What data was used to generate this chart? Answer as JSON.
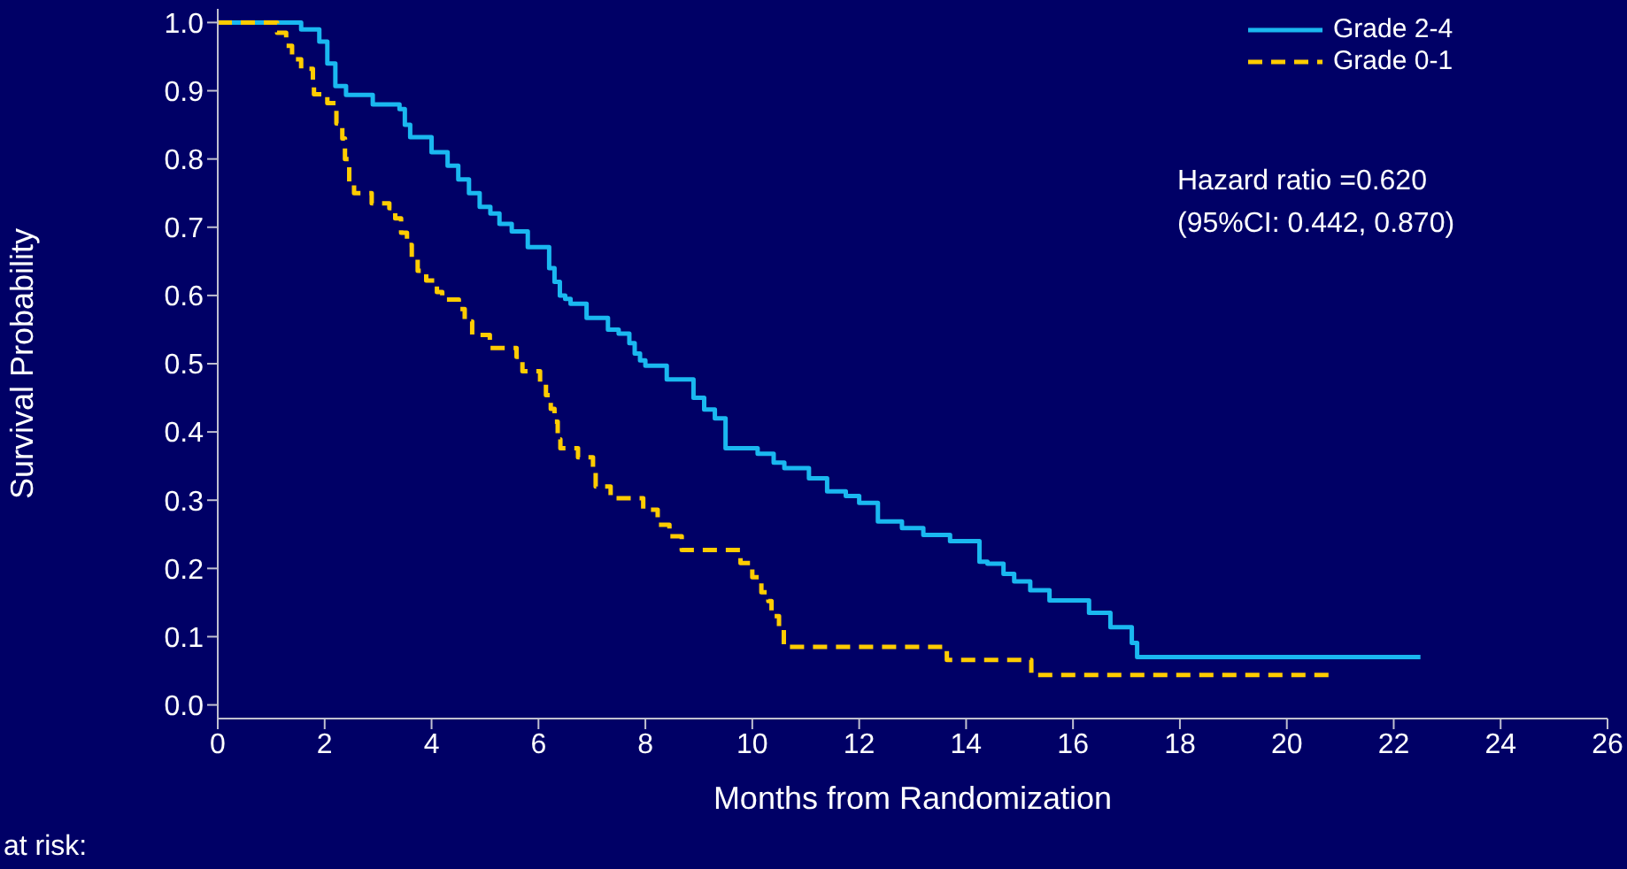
{
  "chart_data": {
    "type": "step",
    "xlabel": "Months from Randomization",
    "ylabel": "Survival Probability",
    "xlim": [
      0,
      26
    ],
    "xticks": [
      0,
      2,
      4,
      6,
      8,
      10,
      12,
      14,
      16,
      18,
      20,
      22,
      24,
      26
    ],
    "ylim": [
      -0.02,
      1.02
    ],
    "yticks": [
      {
        "value": 0,
        "label": "0.0"
      },
      0.1,
      0.2,
      0.3,
      0.4,
      0.5,
      0.6,
      0.7,
      0.8,
      0.9,
      {
        "value": 1,
        "label": "1.0"
      }
    ],
    "legend": "top right",
    "marker": "none",
    "annotations": [
      "Hazard ratio =0.620",
      "(95%CI: 0.442, 0.870)",
      "at risk:"
    ],
    "series": [
      {
        "name": "Grade 2-4",
        "color": "#1ab8f0",
        "line_style": "solid",
        "x": [
          0,
          1.56,
          1.9,
          2.05,
          2.2,
          2.4,
          2.9,
          3.4,
          3.5,
          3.6,
          4.0,
          4.3,
          4.5,
          4.7,
          4.9,
          5.1,
          5.27,
          5.5,
          5.8,
          6.2,
          6.3,
          6.4,
          6.5,
          6.6,
          6.9,
          7.3,
          7.5,
          7.7,
          7.8,
          7.9,
          8.0,
          8.4,
          8.9,
          9.1,
          9.3,
          9.5,
          10.1,
          10.4,
          10.6,
          11.06,
          11.4,
          11.75,
          12.0,
          12.35,
          12.8,
          13.2,
          13.7,
          14.25,
          14.4,
          14.7,
          14.9,
          15.2,
          15.56,
          16.3,
          16.7,
          17.1,
          17.2,
          22.5
        ],
        "values": [
          1.0,
          0.99,
          0.972,
          0.94,
          0.907,
          0.894,
          0.88,
          0.873,
          0.85,
          0.832,
          0.81,
          0.79,
          0.77,
          0.75,
          0.73,
          0.72,
          0.705,
          0.694,
          0.671,
          0.64,
          0.62,
          0.6,
          0.595,
          0.588,
          0.567,
          0.55,
          0.544,
          0.53,
          0.515,
          0.505,
          0.497,
          0.477,
          0.45,
          0.433,
          0.42,
          0.376,
          0.368,
          0.355,
          0.347,
          0.332,
          0.313,
          0.306,
          0.296,
          0.269,
          0.259,
          0.249,
          0.24,
          0.21,
          0.207,
          0.192,
          0.181,
          0.168,
          0.153,
          0.135,
          0.114,
          0.091,
          0.07,
          0.07
        ]
      },
      {
        "name": "Grade 0-1",
        "color": "#ffcc00",
        "line_style": "dashed",
        "x": [
          0,
          1.11,
          1.28,
          1.39,
          1.56,
          1.78,
          1.8,
          2.05,
          2.22,
          2.33,
          2.38,
          2.46,
          2.55,
          2.88,
          3.21,
          3.32,
          3.43,
          3.54,
          3.63,
          3.74,
          3.9,
          4.1,
          4.2,
          4.51,
          4.62,
          4.76,
          5.09,
          5.59,
          5.7,
          6.03,
          6.14,
          6.23,
          6.3,
          6.36,
          6.41,
          6.74,
          7.02,
          7.07,
          7.35,
          7.96,
          8.23,
          8.45,
          8.68,
          9.78,
          10.0,
          10.17,
          10.3,
          10.36,
          10.5,
          10.59,
          13.64,
          15.22,
          20.87
        ],
        "values": [
          1.0,
          0.985,
          0.966,
          0.946,
          0.932,
          0.916,
          0.895,
          0.882,
          0.852,
          0.83,
          0.8,
          0.765,
          0.75,
          0.735,
          0.728,
          0.713,
          0.692,
          0.674,
          0.653,
          0.636,
          0.622,
          0.605,
          0.594,
          0.58,
          0.562,
          0.542,
          0.523,
          0.51,
          0.489,
          0.472,
          0.454,
          0.434,
          0.415,
          0.389,
          0.376,
          0.363,
          0.346,
          0.32,
          0.303,
          0.286,
          0.264,
          0.247,
          0.227,
          0.208,
          0.187,
          0.165,
          0.152,
          0.13,
          0.113,
          0.085,
          0.066,
          0.044,
          0.044
        ]
      }
    ]
  }
}
